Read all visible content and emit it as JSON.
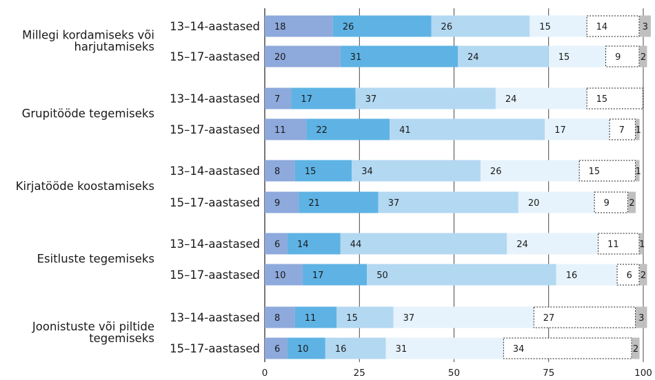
{
  "chart_data": {
    "type": "bar",
    "orientation": "horizontal",
    "stacked": true,
    "xlim": [
      0,
      100
    ],
    "xticks": [
      "0",
      "25",
      "50",
      "75",
      "100"
    ],
    "grid": "vertical",
    "legend": "none",
    "series_colors": [
      "#8ea9db",
      "#5eb3e4",
      "#b3d8f2",
      "#e6f3fc",
      "#ffffff",
      "#bfbfbf"
    ],
    "series_styles": [
      "solid",
      "solid",
      "solid",
      "solid",
      "dashed",
      "solid"
    ],
    "groups": [
      {
        "label": [
          "Millegi kordamiseks või",
          "harjutamiseks"
        ],
        "rows": [
          {
            "label": "13–14-aastased",
            "values": [
              18,
              26,
              26,
              15,
              14,
              3
            ]
          },
          {
            "label": "15–17-aastased",
            "values": [
              20,
              31,
              24,
              15,
              9,
              2
            ]
          }
        ]
      },
      {
        "label": [
          "Grupitööde tegemiseks"
        ],
        "rows": [
          {
            "label": "13–14-aastased",
            "values": [
              7,
              17,
              37,
              24,
              15,
              null
            ]
          },
          {
            "label": "15–17-aastased",
            "values": [
              11,
              22,
              41,
              17,
              7,
              1
            ]
          }
        ]
      },
      {
        "label": [
          "Kirjatööde koostamiseks"
        ],
        "rows": [
          {
            "label": "13–14-aastased",
            "values": [
              8,
              15,
              34,
              26,
              15,
              1
            ]
          },
          {
            "label": "15–17-aastased",
            "values": [
              9,
              21,
              37,
              20,
              9,
              2
            ]
          }
        ]
      },
      {
        "label": [
          "Esitluste tegemiseks"
        ],
        "rows": [
          {
            "label": "13–14-aastased",
            "values": [
              6,
              14,
              44,
              24,
              11,
              1
            ]
          },
          {
            "label": "15–17-aastased",
            "values": [
              10,
              17,
              50,
              16,
              6,
              2
            ]
          }
        ]
      },
      {
        "label": [
          "Joonistuste või piltide",
          "tegemiseks"
        ],
        "rows": [
          {
            "label": "13–14-aastased",
            "values": [
              8,
              11,
              15,
              37,
              27,
              3
            ]
          },
          {
            "label": "15–17-aastased",
            "values": [
              6,
              10,
              16,
              31,
              34,
              2
            ]
          }
        ]
      }
    ]
  }
}
